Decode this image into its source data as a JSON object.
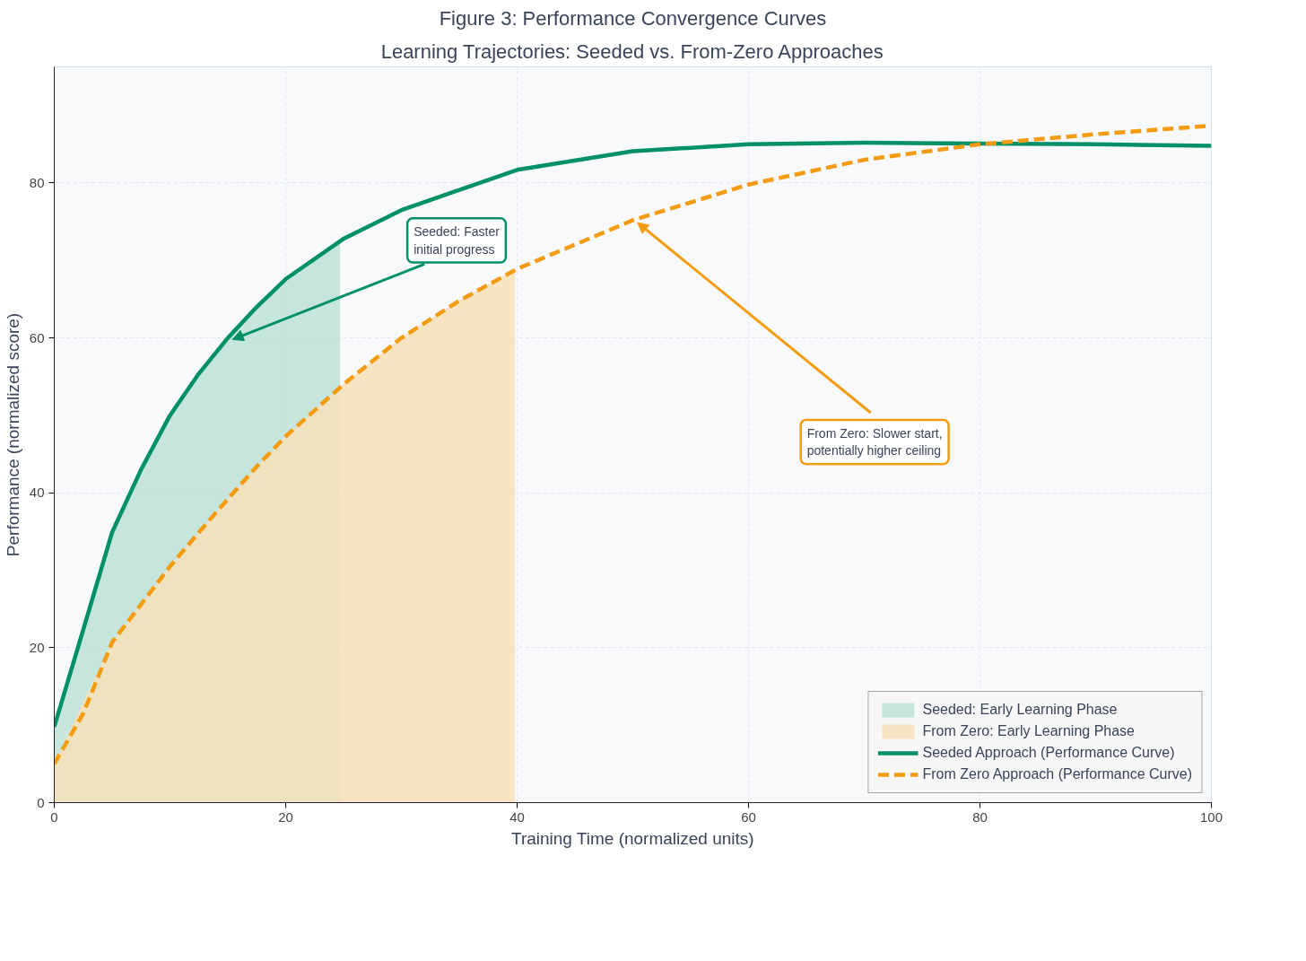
{
  "chart_data": {
    "type": "line",
    "title": "Figure 3: Performance Convergence Curves",
    "subtitle": "Learning Trajectories: Seeded vs. From-Zero Approaches",
    "xlabel": "Training Time (normalized units)",
    "ylabel": "Performance (normalized score)",
    "xlim": [
      0,
      100
    ],
    "ylim": [
      0,
      95
    ],
    "xticks": [
      0,
      20,
      40,
      60,
      80,
      100
    ],
    "yticks": [
      0,
      20,
      40,
      60,
      80
    ],
    "grid": true,
    "legend": "bottom right",
    "series": [
      {
        "name": "Seeded: Early Learning Phase",
        "type": "area",
        "color": "#bde3d7",
        "x": [
          0,
          5,
          10,
          15,
          20,
          24.7
        ],
        "values": [
          9.8,
          34.9,
          50,
          60,
          67.6,
          72.6
        ]
      },
      {
        "name": "From Zero: Early Learning Phase",
        "type": "area",
        "color": "#f7e0b9",
        "x": [
          0,
          5,
          10,
          15,
          20,
          25,
          30,
          35,
          39.8
        ],
        "values": [
          5,
          20.7,
          30.5,
          39.2,
          47.3,
          54,
          60,
          64.8,
          68.8
        ]
      },
      {
        "name": "Seeded Approach (Performance Curve)",
        "line_style": "solid",
        "color": "#009068",
        "x": [
          0,
          2.5,
          5,
          7.5,
          10,
          12.5,
          15,
          17.5,
          20,
          25,
          30,
          40,
          50,
          60,
          70,
          80,
          90,
          100
        ],
        "values": [
          9.8,
          22.3,
          34.9,
          43,
          50,
          55.4,
          60,
          64,
          67.6,
          72.8,
          76.5,
          81.7,
          84.1,
          85,
          85.2,
          85.1,
          85,
          84.8
        ]
      },
      {
        "name": "From Zero Approach (Performance Curve)",
        "line_style": "dashed",
        "color": "#f39c12",
        "x": [
          0,
          2.5,
          5,
          7.5,
          10,
          12.5,
          15,
          17.5,
          20,
          25,
          30,
          35,
          40,
          50,
          60,
          70,
          80,
          90,
          100
        ],
        "values": [
          5,
          11.5,
          20.7,
          25.6,
          30.5,
          34.9,
          39.2,
          43.4,
          47.3,
          54,
          60,
          64.8,
          68.9,
          75.2,
          79.8,
          83,
          85,
          86.3,
          87.4
        ]
      }
    ],
    "annotations": [
      {
        "text": "Seeded: Faster\ninitial progress",
        "x": 15.4,
        "y": 59.8
      },
      {
        "text": "From Zero: Slower start,\npotentially higher ceiling",
        "x": 50.4,
        "y": 74.9
      }
    ]
  }
}
